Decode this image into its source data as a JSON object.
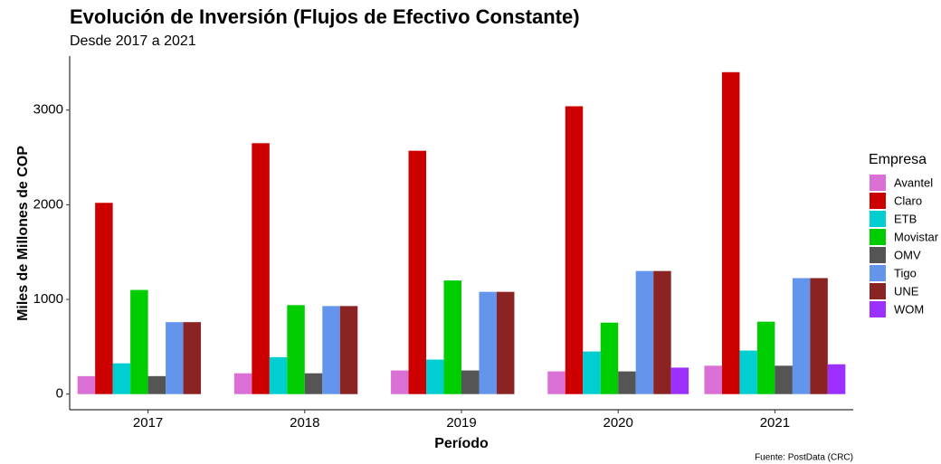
{
  "chart_data": {
    "type": "bar",
    "title": "Evolución de Inversión (Flujos de Efectivo Constante)",
    "subtitle": "Desde 2017 a 2021",
    "x_label": "Período",
    "y_label": "Miles de Millones de COP",
    "legend_title": "Empresa",
    "caption": "Fuente: PostData (CRC)",
    "categories": [
      "2017",
      "2018",
      "2019",
      "2020",
      "2021"
    ],
    "series": [
      {
        "name": "Avantel",
        "color": "#da70d6",
        "values": [
          190,
          220,
          250,
          240,
          300
        ]
      },
      {
        "name": "Claro",
        "color": "#cd0000",
        "values": [
          2020,
          2650,
          2570,
          3040,
          3400
        ]
      },
      {
        "name": "ETB",
        "color": "#00ced1",
        "values": [
          325,
          390,
          365,
          450,
          460
        ]
      },
      {
        "name": "Movistar",
        "color": "#00cd00",
        "values": [
          1100,
          940,
          1200,
          755,
          765
        ]
      },
      {
        "name": "OMV",
        "color": "#555555",
        "values": [
          190,
          220,
          250,
          240,
          300
        ]
      },
      {
        "name": "Tigo",
        "color": "#6495ed",
        "values": [
          760,
          930,
          1080,
          1300,
          1225
        ]
      },
      {
        "name": "UNE",
        "color": "#8b2323",
        "values": [
          760,
          930,
          1080,
          1300,
          1225
        ]
      },
      {
        "name": "WOM",
        "color": "#9b30ff",
        "values": [
          null,
          null,
          null,
          280,
          315
        ]
      }
    ],
    "ylim": [
      -165,
      3570
    ],
    "yticks": [
      0,
      1000,
      2000,
      3000
    ],
    "grid": false,
    "legend": "right"
  }
}
